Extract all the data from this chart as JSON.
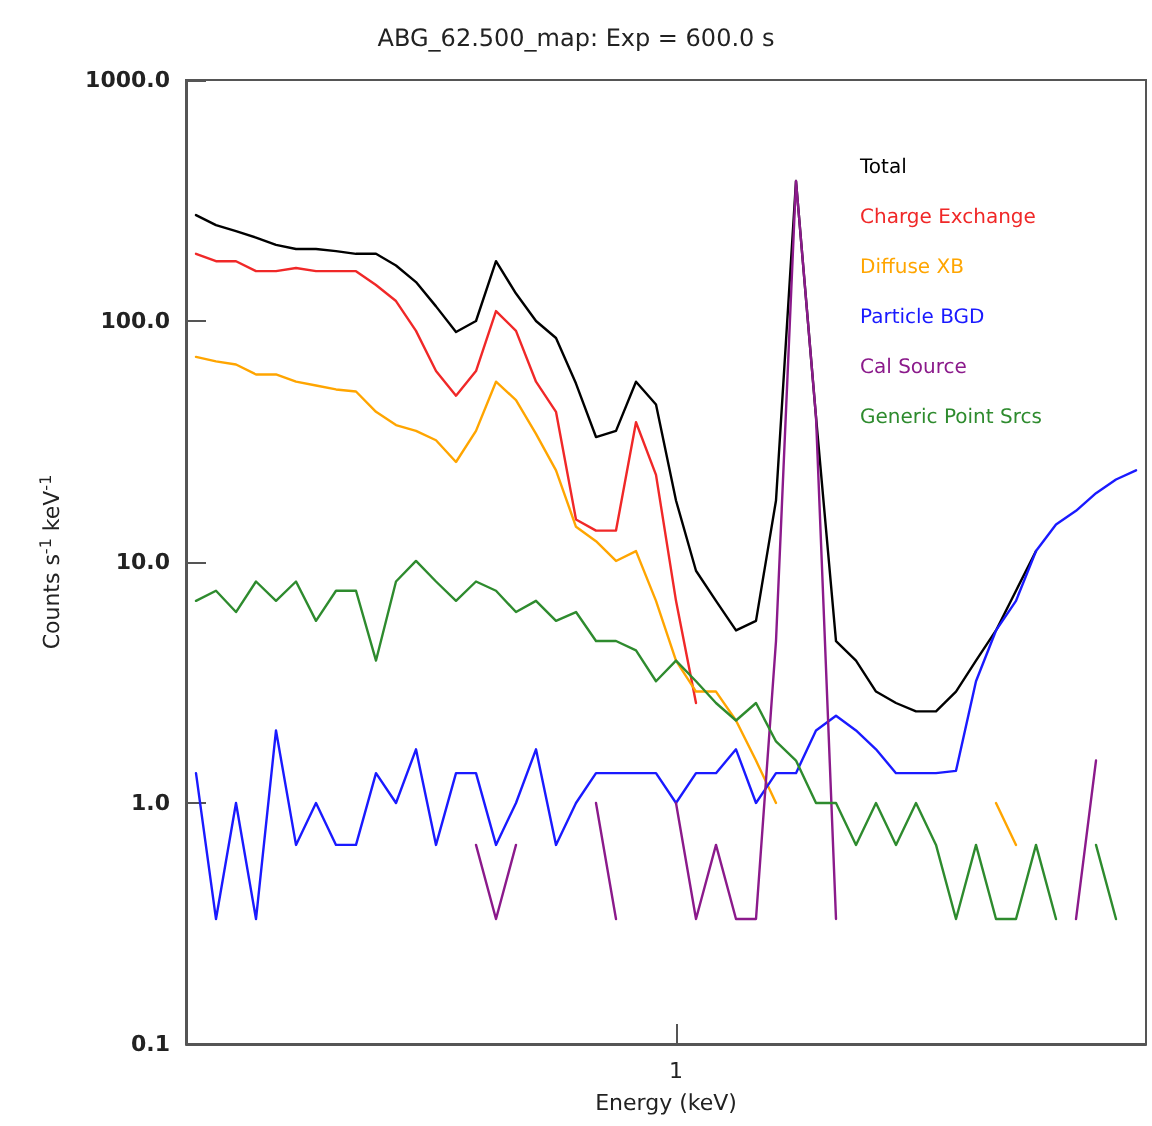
{
  "chart_data": {
    "type": "line",
    "title": "ABG_62.500_map: Exp = 600.0 s",
    "xlabel": "Energy (keV)",
    "ylabel": "Counts s$^{-1}$ keV$^{-1}$",
    "log": "y",
    "grid": false,
    "legend": "top right",
    "marker": "none",
    "line_style": "solid",
    "ylim": [
      0.1,
      1000
    ],
    "yticks": [
      {
        "value": 0.1,
        "label": "0.1"
      },
      {
        "value": 1,
        "label": "1.0"
      },
      {
        "value": 10,
        "label": "10.0"
      },
      {
        "value": 100,
        "label": "100.0"
      },
      {
        "value": 1000,
        "label": "1000.0"
      }
    ],
    "categories": [
      null,
      null,
      null,
      null,
      null,
      null,
      null,
      null,
      null,
      null,
      null,
      null,
      null,
      null,
      null,
      null,
      null,
      null,
      null,
      null,
      null,
      null,
      null,
      null,
      "1",
      null,
      null,
      null,
      null,
      null,
      null,
      null,
      null,
      null,
      null,
      null,
      null,
      null,
      null,
      null,
      null,
      null,
      null,
      null,
      null,
      null,
      null,
      null
    ],
    "series": [
      {
        "name": "Total",
        "color": "#000000",
        "values": [
          275,
          250,
          236,
          222,
          207,
          199,
          199,
          195,
          190,
          190,
          170,
          145,
          115,
          90,
          100,
          177,
          130,
          100,
          85,
          55,
          33,
          35,
          56,
          45,
          18,
          9.2,
          6.9,
          5.2,
          5.7,
          18,
          381,
          40,
          4.7,
          3.9,
          2.9,
          2.6,
          2.4,
          2.4,
          2.9,
          3.9,
          5.2,
          7.6,
          11.1,
          null,
          null,
          null,
          null,
          null
        ]
      },
      {
        "name": "Charge Exchange",
        "color": "#f02828",
        "values": [
          190,
          177,
          177,
          161,
          161,
          166,
          161,
          161,
          161,
          141,
          121,
          91,
          62,
          49,
          62,
          110,
          91,
          56,
          42,
          15,
          13.5,
          13.5,
          38,
          23,
          6.9,
          2.6,
          null,
          null,
          null,
          null,
          null,
          null,
          null,
          null,
          null,
          null,
          null,
          null,
          null,
          null,
          null,
          null,
          null,
          null,
          null,
          null,
          null,
          null
        ]
      },
      {
        "name": "Diffuse XB",
        "color": "#ffa500",
        "values": [
          71,
          68,
          66,
          60,
          60,
          56,
          54,
          52,
          51,
          42,
          37,
          35,
          32,
          26,
          35,
          56,
          47,
          34,
          24,
          14,
          12.2,
          10.1,
          11.1,
          6.9,
          3.9,
          2.9,
          2.9,
          2.2,
          1.5,
          1.0,
          null,
          null,
          null,
          null,
          null,
          null,
          null,
          null,
          null,
          null,
          1.0,
          0.67,
          null,
          null,
          null,
          null,
          null,
          null
        ]
      },
      {
        "name": "Particle BGD",
        "color": "#1a1aff",
        "values": [
          1.33,
          0.33,
          1.0,
          0.33,
          2.0,
          0.67,
          1.0,
          0.67,
          0.67,
          1.33,
          1.0,
          1.67,
          0.67,
          1.33,
          1.33,
          0.67,
          1.0,
          1.67,
          0.67,
          1.0,
          1.33,
          1.33,
          1.33,
          1.33,
          1.0,
          1.33,
          1.33,
          1.67,
          1.0,
          1.33,
          1.33,
          2.0,
          2.3,
          2.0,
          1.67,
          1.33,
          1.33,
          1.33,
          1.36,
          3.2,
          5.2,
          6.9,
          11.1,
          14.3,
          16.3,
          19.3,
          22,
          24
        ]
      },
      {
        "name": "Cal Source",
        "color": "#8b1a8b",
        "values": [
          null,
          null,
          null,
          null,
          null,
          null,
          null,
          null,
          null,
          null,
          null,
          null,
          null,
          null,
          0.67,
          0.33,
          0.67,
          null,
          null,
          null,
          1.0,
          0.33,
          null,
          null,
          1.0,
          0.33,
          0.67,
          0.33,
          0.33,
          4.7,
          381,
          40,
          0.33,
          null,
          null,
          null,
          null,
          null,
          null,
          null,
          null,
          null,
          null,
          null,
          0.33,
          1.5,
          null,
          null
        ]
      },
      {
        "name": "Generic Point Srcs",
        "color": "#2e8b2e",
        "values": [
          6.9,
          7.6,
          6.2,
          8.3,
          6.9,
          8.3,
          5.7,
          7.6,
          7.6,
          3.9,
          8.3,
          10.1,
          8.3,
          6.9,
          8.3,
          7.6,
          6.2,
          6.9,
          5.7,
          6.2,
          4.7,
          4.7,
          4.3,
          3.2,
          3.9,
          3.2,
          2.6,
          2.2,
          2.6,
          1.8,
          1.5,
          1.0,
          1.0,
          0.67,
          1.0,
          0.67,
          1.0,
          0.67,
          0.33,
          0.67,
          0.33,
          0.33,
          0.67,
          0.33,
          null,
          0.67,
          0.33,
          null
        ]
      }
    ]
  }
}
